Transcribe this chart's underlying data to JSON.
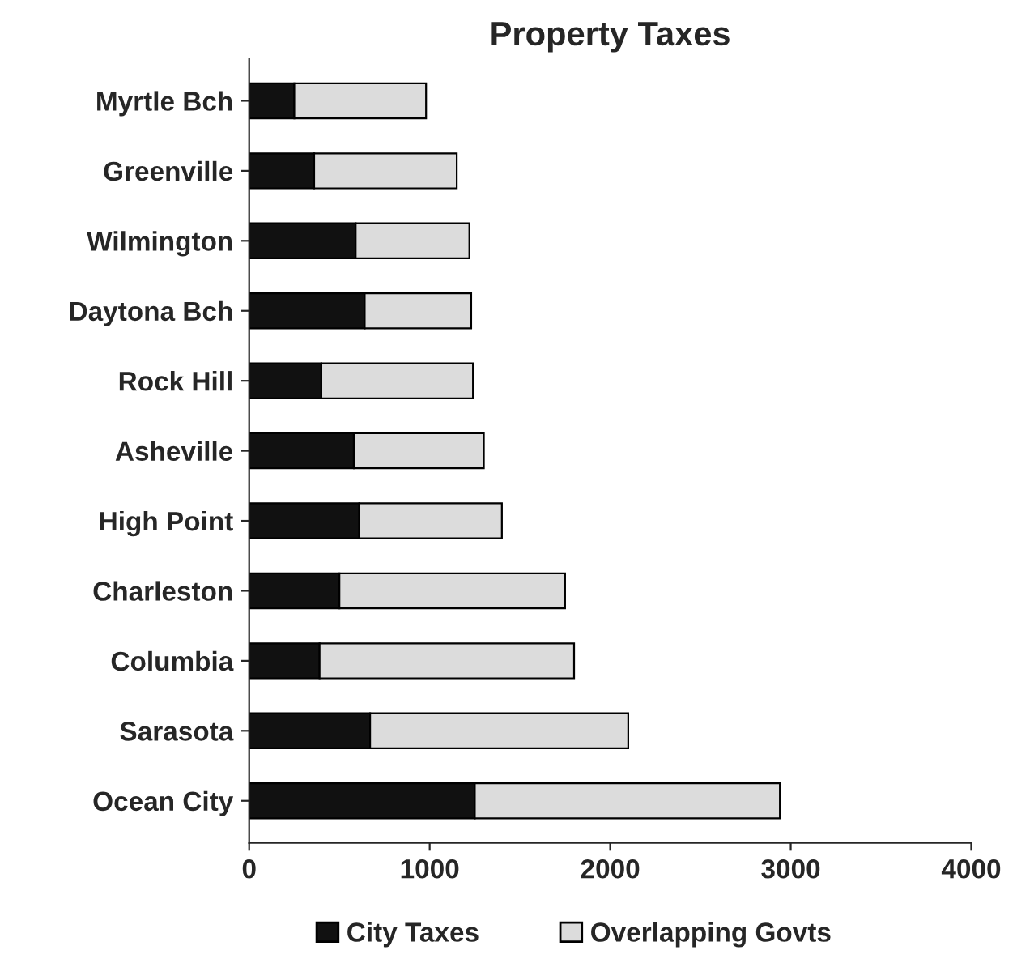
{
  "chart_data": {
    "type": "bar",
    "title": "Property Taxes",
    "orientation": "horizontal",
    "stacked": true,
    "categories": [
      "Myrtle Bch",
      "Greenville",
      "Wilmington",
      "Daytona Bch",
      "Rock Hill",
      "Asheville",
      "High Point",
      "Charleston",
      "Columbia",
      "Sarasota",
      "Ocean City"
    ],
    "series": [
      {
        "name": "City Taxes",
        "color": "#111111",
        "values": [
          250,
          360,
          590,
          640,
          400,
          580,
          610,
          500,
          390,
          670,
          1250
        ]
      },
      {
        "name": "Overlapping Govts",
        "color": "#dcdcdc",
        "values": [
          730,
          790,
          630,
          590,
          840,
          720,
          790,
          1250,
          1410,
          1430,
          1690
        ]
      }
    ],
    "xlim": [
      0,
      4000
    ],
    "xticks": [
      0,
      1000,
      2000,
      3000,
      4000
    ],
    "grid": false,
    "legend": "bottom"
  }
}
